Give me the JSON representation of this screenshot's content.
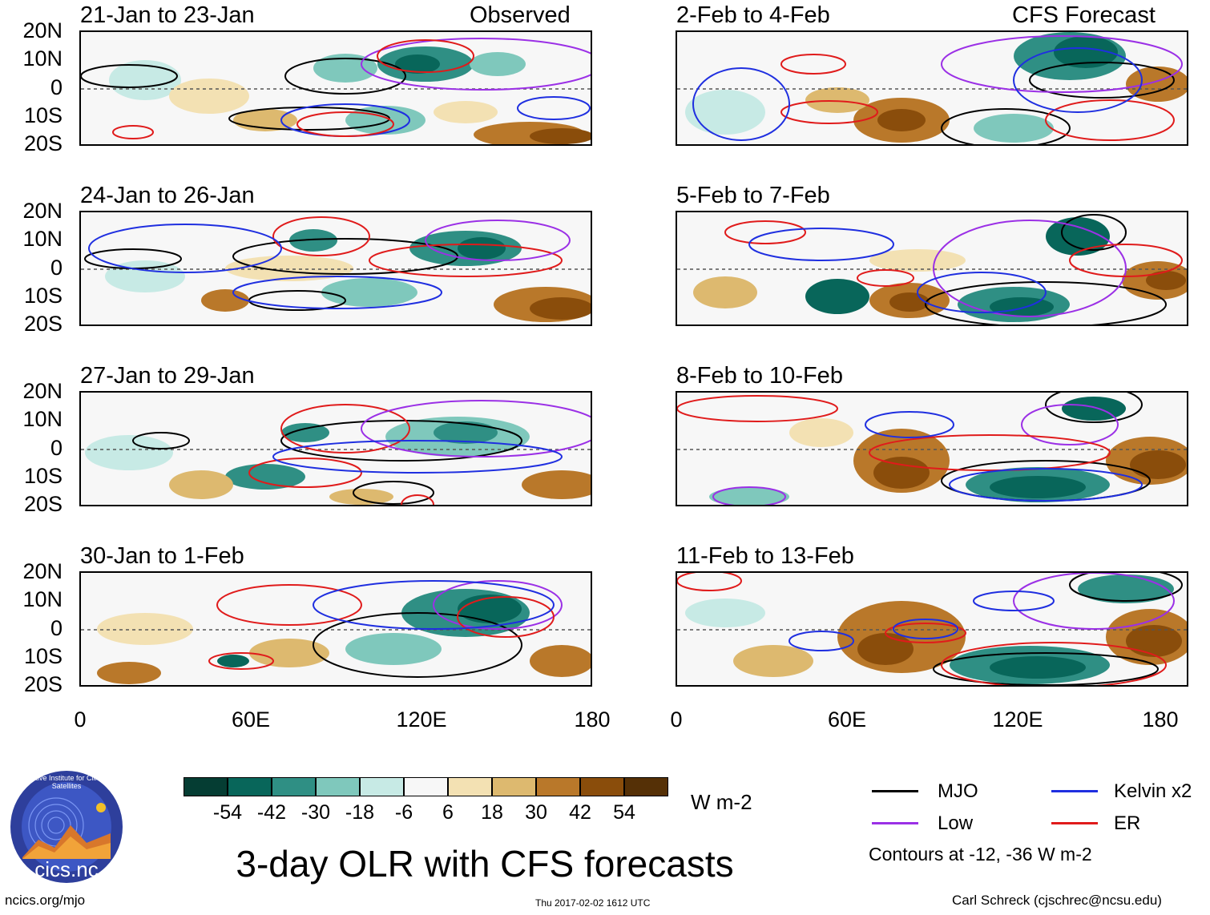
{
  "panels": {
    "observed_label": "Observed",
    "forecast_label": "CFS Forecast",
    "observed": [
      {
        "title": "21-Jan to 23-Jan"
      },
      {
        "title": "24-Jan to 26-Jan"
      },
      {
        "title": "27-Jan to 29-Jan"
      },
      {
        "title": "30-Jan to 1-Feb"
      }
    ],
    "forecast": [
      {
        "title": "2-Feb to 4-Feb"
      },
      {
        "title": "5-Feb to 7-Feb"
      },
      {
        "title": "8-Feb to 10-Feb"
      },
      {
        "title": "11-Feb to 13-Feb"
      }
    ]
  },
  "axes": {
    "lat_labels": [
      "20N",
      "10N",
      "0",
      "10S",
      "20S"
    ],
    "lon_labels": [
      "0",
      "60E",
      "120E",
      "180"
    ]
  },
  "colorbar": {
    "unit": "W m-2",
    "labels": [
      "-54",
      "-42",
      "-30",
      "-18",
      "-6",
      "6",
      "18",
      "30",
      "42",
      "54"
    ],
    "colors": [
      "#053d33",
      "#08665a",
      "#2f8f84",
      "#7fc8bc",
      "#c7eae5",
      "#f7f7f7",
      "#f3e1b3",
      "#ddb96f",
      "#b9782a",
      "#8a4d0b",
      "#553006"
    ]
  },
  "main_title": "3-day OLR with CFS forecasts",
  "legend": {
    "mjo": {
      "label": "MJO",
      "color": "#000000"
    },
    "kelvin": {
      "label": "Kelvin x2",
      "color": "#1f2fe0"
    },
    "low": {
      "label": "Low",
      "color": "#9b30e6"
    },
    "er": {
      "label": "ER",
      "color": "#e01b1b"
    },
    "note": "Contours at -12, -36 W m-2"
  },
  "logo": {
    "text": "cics.nc",
    "ring_text": "Cooperative Institute for Climate and Satellites"
  },
  "footer": {
    "site": "ncics.org/mjo",
    "timestamp": "Thu 2017-02-02 1612 UTC",
    "author": "Carl Schreck (cjschrec@ncsu.edu)"
  }
}
